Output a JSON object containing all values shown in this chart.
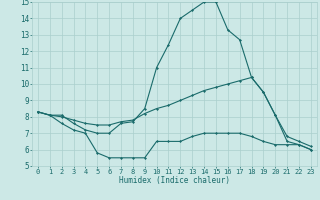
{
  "xlabel": "Humidex (Indice chaleur)",
  "xlim": [
    -0.5,
    23.5
  ],
  "ylim": [
    5,
    15
  ],
  "yticks": [
    5,
    6,
    7,
    8,
    9,
    10,
    11,
    12,
    13,
    14,
    15
  ],
  "xticks": [
    0,
    1,
    2,
    3,
    4,
    5,
    6,
    7,
    8,
    9,
    10,
    11,
    12,
    13,
    14,
    15,
    16,
    17,
    18,
    19,
    20,
    21,
    22,
    23
  ],
  "background_color": "#cce8e6",
  "line_color": "#1a6b6b",
  "grid_color": "#aacfcd",
  "series": {
    "max": [
      8.3,
      8.1,
      8.1,
      7.6,
      7.2,
      7.0,
      7.0,
      7.6,
      7.7,
      8.5,
      11.0,
      12.4,
      14.0,
      14.5,
      15.0,
      15.0,
      13.3,
      12.7,
      10.4,
      9.5,
      8.1,
      6.5,
      6.3,
      6.0
    ],
    "mean": [
      8.3,
      8.1,
      8.0,
      7.8,
      7.6,
      7.5,
      7.5,
      7.7,
      7.8,
      8.2,
      8.5,
      8.7,
      9.0,
      9.3,
      9.6,
      9.8,
      10.0,
      10.2,
      10.4,
      9.5,
      8.1,
      6.8,
      6.5,
      6.2
    ],
    "min": [
      8.3,
      8.1,
      7.6,
      7.2,
      7.0,
      5.8,
      5.5,
      5.5,
      5.5,
      5.5,
      6.5,
      6.5,
      6.5,
      6.8,
      7.0,
      7.0,
      7.0,
      7.0,
      6.8,
      6.5,
      6.3,
      6.3,
      6.3,
      6.0
    ]
  }
}
